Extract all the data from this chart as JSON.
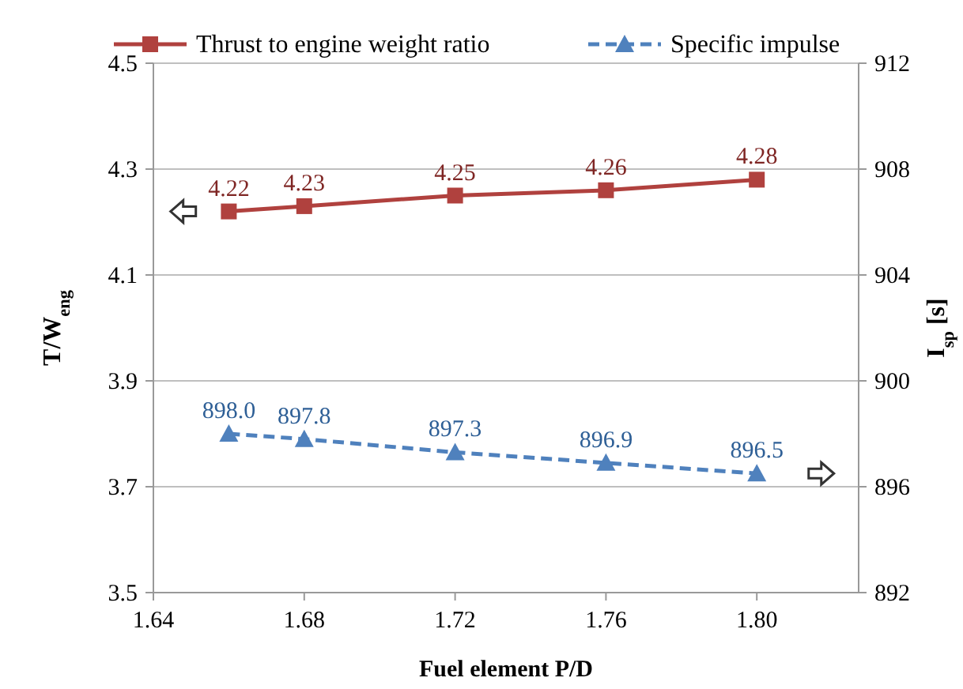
{
  "chart_data": {
    "type": "line",
    "xlabel": "Fuel element P/D",
    "ylabel": "T/W$_{eng}$",
    "y2label": "I$_{sp}$ [s]",
    "x": [
      1.66,
      1.68,
      1.72,
      1.76,
      1.8
    ],
    "xlim": [
      1.64,
      1.827
    ],
    "xticks": [
      1.64,
      1.68,
      1.72,
      1.76,
      {
        "value": 1.8,
        "label": "1.80"
      }
    ],
    "ylim": [
      3.5,
      4.5
    ],
    "yticks": [
      3.5,
      3.7,
      3.9,
      4.1,
      4.3,
      4.5
    ],
    "y2lim": [
      892,
      912
    ],
    "y2ticks": [
      892,
      896,
      900,
      904,
      908,
      912
    ],
    "grid": "y",
    "legend": "top",
    "series": [
      {
        "name": "Thrust to engine weight ratio",
        "color": "#b0413e",
        "marker": "square",
        "line_style": "solid",
        "values": [
          4.22,
          4.23,
          4.25,
          4.26,
          4.28
        ],
        "value_labels": [
          "4.22",
          "4.23",
          "4.25",
          "4.26",
          "4.28"
        ]
      },
      {
        "name": "Specific impulse",
        "color": "#4f81bd",
        "marker": "triangle",
        "line_style": "dashed",
        "axis": "y2",
        "values": [
          898.0,
          897.8,
          897.3,
          896.9,
          896.5
        ],
        "value_labels": [
          "898.0",
          "897.8",
          "897.3",
          "896.9",
          "896.5"
        ]
      }
    ]
  }
}
